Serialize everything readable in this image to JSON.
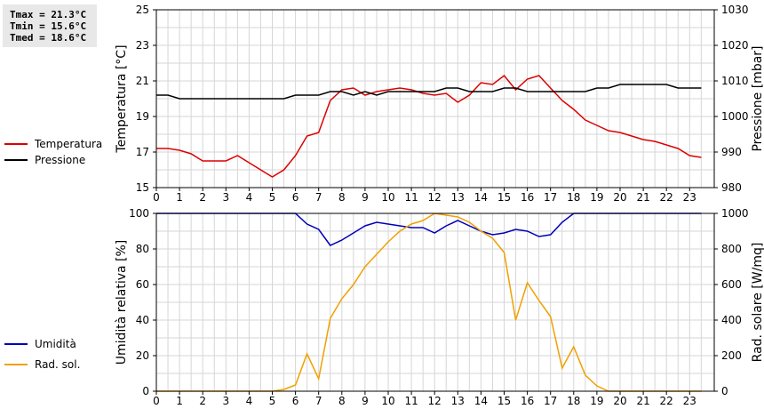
{
  "stats": {
    "tmax": "Tmax = 21.3°C",
    "tmin": "Tmin = 15.6°C",
    "tmed": "Tmed = 18.6°C"
  },
  "chart_data": [
    {
      "type": "line",
      "xlabel": "",
      "x_ticks": [
        "0",
        "1",
        "2",
        "3",
        "4",
        "5",
        "6",
        "7",
        "8",
        "9",
        "10",
        "11",
        "12",
        "13",
        "14",
        "15",
        "16",
        "17",
        "18",
        "19",
        "20",
        "21",
        "22",
        "23"
      ],
      "ylabel": "Temperatura [°C]",
      "ylim": [
        15,
        25
      ],
      "y_ticks": [
        "15",
        "17",
        "19",
        "21",
        "23",
        "25"
      ],
      "y2label": "Pressione [mbar]",
      "y2lim": [
        980,
        1030
      ],
      "y2_ticks": [
        "980",
        "990",
        "1000",
        "1010",
        "1020",
        "1030"
      ],
      "grid": true,
      "legend_position": "left",
      "series": [
        {
          "name": "Temperatura",
          "axis": "left",
          "color": "#dd0000",
          "x": [
            0,
            0.5,
            1,
            1.5,
            2,
            2.5,
            3,
            3.5,
            4,
            4.5,
            5,
            5.5,
            6,
            6.5,
            7,
            7.5,
            8,
            8.5,
            9,
            9.5,
            10,
            10.5,
            11,
            11.5,
            12,
            12.5,
            13,
            13.5,
            14,
            14.5,
            15,
            15.5,
            16,
            16.5,
            17,
            17.5,
            18,
            18.5,
            19,
            19.5,
            20,
            20.5,
            21,
            21.5,
            22,
            22.5,
            23,
            23.5
          ],
          "y": [
            17.2,
            17.2,
            17.1,
            16.9,
            16.5,
            16.5,
            16.5,
            16.8,
            16.4,
            16.0,
            15.6,
            16.0,
            16.8,
            17.9,
            18.1,
            19.9,
            20.5,
            20.6,
            20.2,
            20.4,
            20.5,
            20.6,
            20.5,
            20.3,
            20.2,
            20.3,
            19.8,
            20.2,
            20.9,
            20.8,
            21.3,
            20.5,
            21.1,
            21.3,
            20.6,
            19.9,
            19.4,
            18.8,
            18.5,
            18.2,
            18.1,
            17.9,
            17.7,
            17.6,
            17.4,
            17.2,
            16.8,
            16.7
          ]
        },
        {
          "name": "Pressione",
          "axis": "right",
          "color": "#000000",
          "x": [
            0,
            0.5,
            1,
            1.5,
            2,
            2.5,
            3,
            3.5,
            4,
            4.5,
            5,
            5.5,
            6,
            6.5,
            7,
            7.5,
            8,
            8.5,
            9,
            9.5,
            10,
            10.5,
            11,
            11.5,
            12,
            12.5,
            13,
            13.5,
            14,
            14.5,
            15,
            15.5,
            16,
            16.5,
            17,
            17.5,
            18,
            18.5,
            19,
            19.5,
            20,
            20.5,
            21,
            21.5,
            22,
            22.5,
            23,
            23.5
          ],
          "y": [
            1006,
            1006,
            1005,
            1005,
            1005,
            1005,
            1005,
            1005,
            1005,
            1005,
            1005,
            1005,
            1006,
            1006,
            1006,
            1007,
            1007,
            1006,
            1007,
            1006,
            1007,
            1007,
            1007,
            1007,
            1007,
            1008,
            1008,
            1007,
            1007,
            1007,
            1008,
            1008,
            1007,
            1007,
            1007,
            1007,
            1007,
            1007,
            1008,
            1008,
            1009,
            1009,
            1009,
            1009,
            1009,
            1008,
            1008,
            1008
          ]
        }
      ]
    },
    {
      "type": "line",
      "xlabel": "",
      "x_ticks": [
        "0",
        "1",
        "2",
        "3",
        "4",
        "5",
        "6",
        "7",
        "8",
        "9",
        "10",
        "11",
        "12",
        "13",
        "14",
        "15",
        "16",
        "17",
        "18",
        "19",
        "20",
        "21",
        "22",
        "23"
      ],
      "ylabel": "Umidità relativa [%]",
      "ylim": [
        0,
        100
      ],
      "y_ticks": [
        "0",
        "20",
        "40",
        "60",
        "80",
        "100"
      ],
      "y2label": "Rad. solare [W/mq]",
      "y2lim": [
        0,
        1000
      ],
      "y2_ticks": [
        "0",
        "200",
        "400",
        "600",
        "800",
        "1000"
      ],
      "grid": true,
      "legend_position": "left",
      "series": [
        {
          "name": "Umidità",
          "axis": "left",
          "color": "#0000bb",
          "x": [
            0,
            0.5,
            1,
            1.5,
            2,
            2.5,
            3,
            3.5,
            4,
            4.5,
            5,
            5.5,
            6,
            6.5,
            7,
            7.5,
            8,
            8.5,
            9,
            9.5,
            10,
            10.5,
            11,
            11.5,
            12,
            12.5,
            13,
            13.5,
            14,
            14.5,
            15,
            15.5,
            16,
            16.5,
            17,
            17.5,
            18,
            18.5,
            19,
            19.5,
            20,
            20.5,
            21,
            21.5,
            22,
            22.5,
            23,
            23.5
          ],
          "y": [
            100,
            100,
            100,
            100,
            100,
            100,
            100,
            100,
            100,
            100,
            100,
            100,
            100,
            94,
            91,
            82,
            85,
            89,
            93,
            95,
            94,
            93,
            92,
            92,
            89,
            93,
            96,
            93,
            90,
            88,
            89,
            91,
            90,
            87,
            88,
            95,
            100,
            100,
            100,
            100,
            100,
            100,
            100,
            100,
            100,
            100,
            100,
            100
          ]
        },
        {
          "name": "Rad. sol.",
          "axis": "right",
          "color": "#f0a000",
          "x": [
            0,
            0.5,
            1,
            1.5,
            2,
            2.5,
            3,
            3.5,
            4,
            4.5,
            5,
            5.5,
            6,
            6.5,
            7,
            7.5,
            8,
            8.5,
            9,
            9.5,
            10,
            10.5,
            11,
            11.5,
            12,
            12.5,
            13,
            13.5,
            14,
            14.5,
            15,
            15.5,
            16,
            16.5,
            17,
            17.5,
            18,
            18.5,
            19,
            19.5,
            20,
            20.5,
            21,
            21.5,
            22,
            22.5,
            23,
            23.5
          ],
          "y": [
            0,
            0,
            0,
            0,
            0,
            0,
            0,
            0,
            0,
            0,
            0,
            10,
            35,
            210,
            70,
            410,
            520,
            600,
            700,
            770,
            840,
            900,
            940,
            960,
            1010,
            990,
            980,
            950,
            900,
            860,
            780,
            400,
            610,
            510,
            420,
            130,
            250,
            90,
            30,
            0,
            0,
            0,
            0,
            0,
            0,
            0,
            0,
            0
          ]
        }
      ]
    }
  ]
}
